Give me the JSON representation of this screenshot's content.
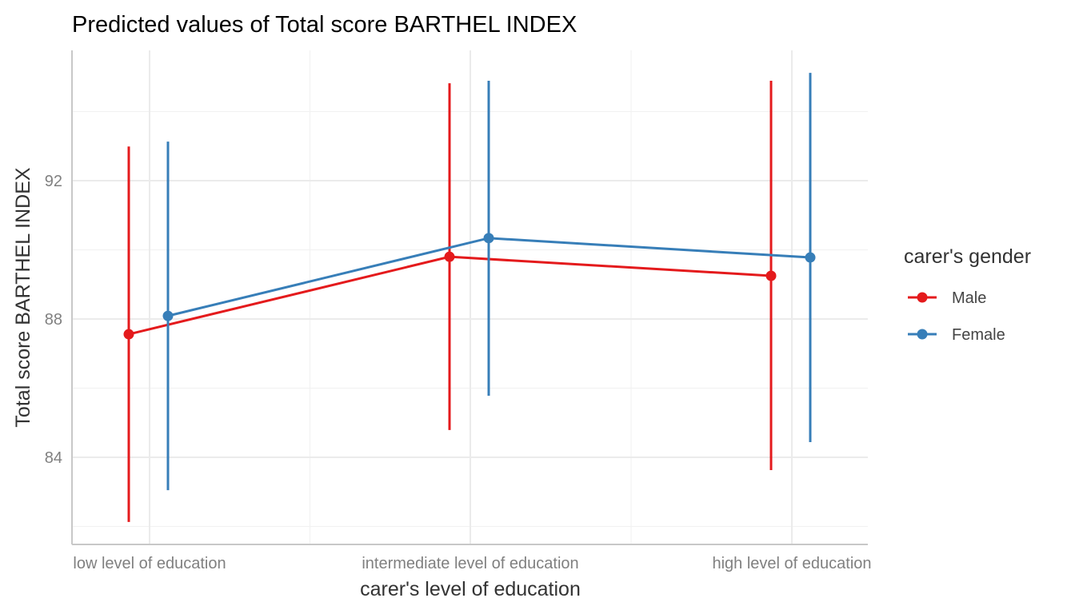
{
  "chart_data": {
    "type": "line",
    "title": "Predicted values of Total score BARTHEL INDEX",
    "xlabel": "carer's level of education",
    "ylabel": "Total score BARTHEL INDEX",
    "categories": [
      "low level of education",
      "intermediate level of education",
      "high level of education"
    ],
    "yticks": [
      84,
      88,
      92
    ],
    "ylim": [
      81.48,
      95.77
    ],
    "grid": true,
    "legend": {
      "title": "carer's gender",
      "placement": "right"
    },
    "series": [
      {
        "name": "Male",
        "color": "#E41A1C",
        "values": [
          87.56,
          89.8,
          89.25
        ],
        "ci_low": [
          82.13,
          84.79,
          83.63
        ],
        "ci_high": [
          92.99,
          94.82,
          94.89
        ]
      },
      {
        "name": "Female",
        "color": "#377EB8",
        "values": [
          88.09,
          90.34,
          89.78
        ],
        "ci_low": [
          83.05,
          85.78,
          84.44
        ],
        "ci_high": [
          93.13,
          94.89,
          95.12
        ]
      }
    ]
  }
}
